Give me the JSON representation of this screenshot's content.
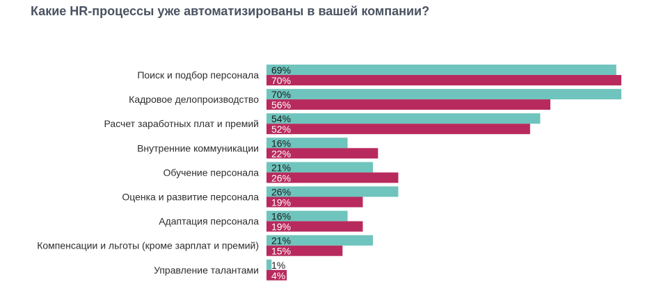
{
  "chart_data": {
    "type": "bar",
    "orientation": "horizontal",
    "title": "Какие HR-процессы уже автоматизированы в вашей компании?",
    "categories": [
      "Поиск и подбор персонала",
      "Кадровое делопроизводство",
      "Расчет заработных плат и премий",
      "Внутренние коммуникации",
      "Обучение персонала",
      "Оценка и развитие персонала",
      "Адаптация персонала",
      "Компенсации и льготы (кроме зарплат и премий)",
      "Управление талантами"
    ],
    "series": [
      {
        "color": "#6fc4bd",
        "label_color": "#1a1a1a",
        "values": [
          69,
          70,
          54,
          16,
          21,
          26,
          16,
          21,
          1
        ]
      },
      {
        "color": "#b82a5d",
        "label_color": "#ffffff",
        "values": [
          70,
          56,
          52,
          22,
          26,
          19,
          19,
          15,
          4
        ]
      }
    ],
    "value_suffix": "%",
    "xlim": [
      0,
      70
    ],
    "grid": false,
    "legend": "none"
  }
}
